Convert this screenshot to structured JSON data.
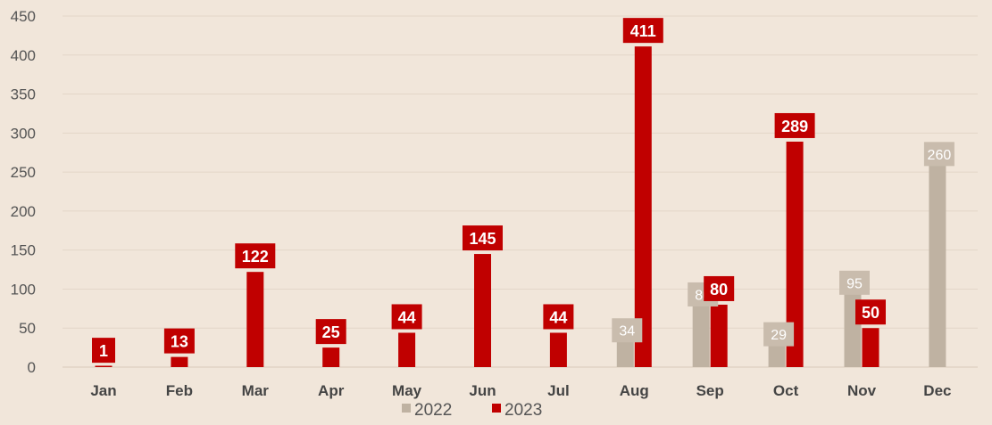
{
  "chart_data": {
    "type": "bar",
    "categories": [
      "Jan",
      "Feb",
      "Mar",
      "Apr",
      "May",
      "Jun",
      "Jul",
      "Aug",
      "Sep",
      "Oct",
      "Nov",
      "Dec"
    ],
    "series": [
      {
        "name": "2022",
        "color": "#bfb2a2",
        "values": [
          null,
          null,
          null,
          null,
          null,
          null,
          null,
          34,
          80,
          29,
          95,
          260
        ]
      },
      {
        "name": "2023",
        "color": "#c00000",
        "values": [
          1,
          13,
          122,
          25,
          44,
          145,
          44,
          411,
          80,
          289,
          50,
          null
        ]
      }
    ],
    "ylim": [
      0,
      450
    ],
    "yticks": [
      0,
      50,
      100,
      150,
      200,
      250,
      300,
      350,
      400,
      450
    ],
    "grid": true,
    "legend": "bottom",
    "background": "#f1e6da"
  }
}
